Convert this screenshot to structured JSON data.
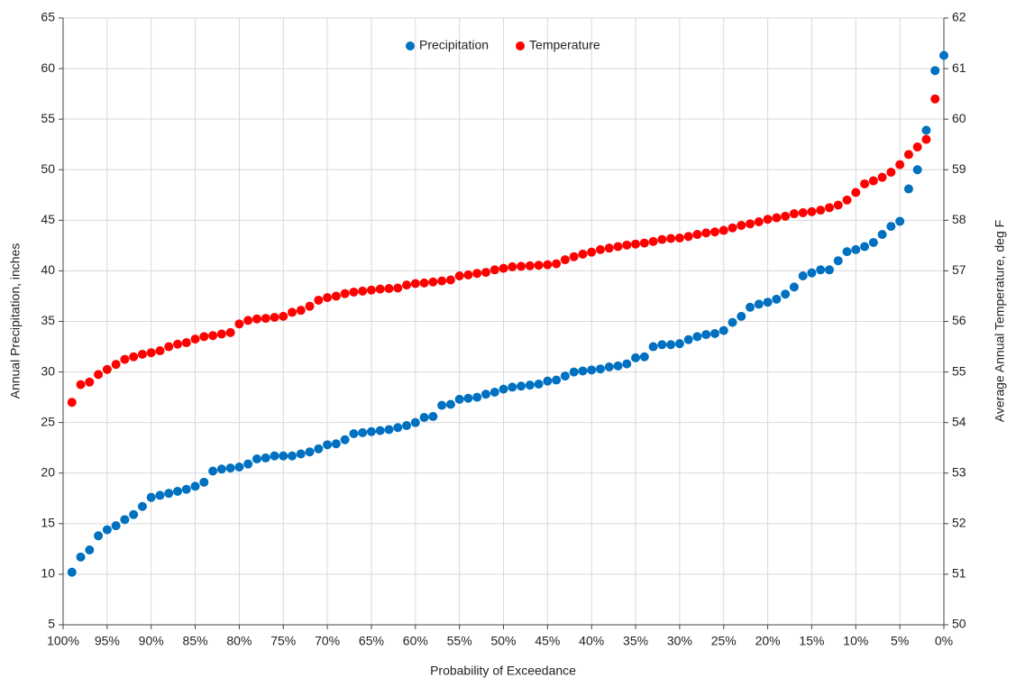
{
  "chart_data": {
    "type": "scatter",
    "x_label": "Probability of Exceedance",
    "y_label": "Annual Precipitation, inches",
    "y2_label": "Average Annual Temperature, deg F",
    "xlim": [
      100,
      0
    ],
    "xticks": [
      {
        "value": 100,
        "label": "100%"
      },
      {
        "value": 95,
        "label": "95%"
      },
      {
        "value": 90,
        "label": "90%"
      },
      {
        "value": 85,
        "label": "85%"
      },
      {
        "value": 80,
        "label": "80%"
      },
      {
        "value": 75,
        "label": "75%"
      },
      {
        "value": 70,
        "label": "70%"
      },
      {
        "value": 65,
        "label": "65%"
      },
      {
        "value": 60,
        "label": "60%"
      },
      {
        "value": 55,
        "label": "55%"
      },
      {
        "value": 50,
        "label": "50%"
      },
      {
        "value": 45,
        "label": "45%"
      },
      {
        "value": 40,
        "label": "40%"
      },
      {
        "value": 35,
        "label": "35%"
      },
      {
        "value": 30,
        "label": "30%"
      },
      {
        "value": 25,
        "label": "25%"
      },
      {
        "value": 20,
        "label": "20%"
      },
      {
        "value": 15,
        "label": "15%"
      },
      {
        "value": 10,
        "label": "10%"
      },
      {
        "value": 5,
        "label": "5%"
      },
      {
        "value": 0,
        "label": "0%"
      }
    ],
    "ylim": [
      5,
      65
    ],
    "yticks": [
      5,
      10,
      15,
      20,
      25,
      30,
      35,
      40,
      45,
      50,
      55,
      60,
      65
    ],
    "y2lim": [
      50,
      62
    ],
    "y2ticks": [
      50,
      51,
      52,
      53,
      54,
      55,
      56,
      57,
      58,
      59,
      60,
      61,
      62
    ],
    "grid": true,
    "legend": "top",
    "x": [
      99,
      98,
      97,
      96,
      95,
      94,
      93,
      92,
      91,
      90,
      89,
      88,
      87,
      86,
      85,
      84,
      83,
      82,
      81,
      80,
      79,
      78,
      77,
      76,
      75,
      74,
      73,
      72,
      71,
      70,
      69,
      68,
      67,
      66,
      65,
      64,
      63,
      62,
      61,
      60,
      59,
      58,
      57,
      56,
      55,
      54,
      53,
      52,
      51,
      50,
      49,
      48,
      47,
      46,
      45,
      44,
      43,
      42,
      41,
      40,
      39,
      38,
      37,
      36,
      35,
      34,
      33,
      32,
      31,
      30,
      29,
      28,
      27,
      26,
      25,
      24,
      23,
      22,
      21,
      20,
      19,
      18,
      17,
      16,
      15,
      14,
      13,
      12,
      11,
      10,
      9,
      8,
      7,
      6,
      5,
      4,
      3,
      2,
      1,
      0
    ],
    "series": [
      {
        "name": "Precipitation",
        "color": "#0070c0",
        "values": [
          10.2,
          11.7,
          12.4,
          13.8,
          14.4,
          14.8,
          15.4,
          15.9,
          16.7,
          17.6,
          17.8,
          18.0,
          18.2,
          18.4,
          18.7,
          19.1,
          20.2,
          20.4,
          20.5,
          20.6,
          20.9,
          21.4,
          21.5,
          21.7,
          21.7,
          21.7,
          21.9,
          22.1,
          22.4,
          22.8,
          22.9,
          23.3,
          23.9,
          24.0,
          24.1,
          24.2,
          24.3,
          24.5,
          24.7,
          25.0,
          25.5,
          25.6,
          26.7,
          26.8,
          27.3,
          27.4,
          27.5,
          27.8,
          28.0,
          28.3,
          28.5,
          28.6,
          28.7,
          28.8,
          29.1,
          29.2,
          29.6,
          30.0,
          30.1,
          30.2,
          30.3,
          30.5,
          30.6,
          30.8,
          31.4,
          31.5,
          32.5,
          32.7,
          32.7,
          32.8,
          33.2,
          33.5,
          33.7,
          33.8,
          34.1,
          34.9,
          35.5,
          36.4,
          36.7,
          36.9,
          37.2,
          37.7,
          38.4,
          39.5,
          39.8,
          40.1,
          40.1,
          41.0,
          41.9,
          42.1,
          42.4,
          42.8,
          43.6,
          44.4,
          44.9,
          48.1,
          50.0,
          53.9,
          59.8,
          61.3
        ]
      },
      {
        "name": "Temperature",
        "color": "#ff0000",
        "axis": "y2",
        "values": [
          54.4,
          54.75,
          54.8,
          54.95,
          55.05,
          55.15,
          55.25,
          55.3,
          55.35,
          55.38,
          55.42,
          55.5,
          55.55,
          55.58,
          55.65,
          55.7,
          55.72,
          55.75,
          55.78,
          55.95,
          56.02,
          56.05,
          56.06,
          56.08,
          56.1,
          56.18,
          56.22,
          56.3,
          56.42,
          56.47,
          56.5,
          56.55,
          56.58,
          56.6,
          56.62,
          56.64,
          56.65,
          56.66,
          56.72,
          56.75,
          56.76,
          56.78,
          56.8,
          56.82,
          56.9,
          56.92,
          56.95,
          56.97,
          57.02,
          57.05,
          57.08,
          57.09,
          57.1,
          57.11,
          57.12,
          57.14,
          57.22,
          57.28,
          57.33,
          57.37,
          57.42,
          57.45,
          57.48,
          57.51,
          57.53,
          57.55,
          57.58,
          57.62,
          57.64,
          57.65,
          57.68,
          57.72,
          57.75,
          57.77,
          57.8,
          57.85,
          57.9,
          57.93,
          57.97,
          58.02,
          58.05,
          58.08,
          58.13,
          58.15,
          58.17,
          58.2,
          58.25,
          58.3,
          58.4,
          58.55,
          58.72,
          58.78,
          58.85,
          58.95,
          59.1,
          59.3,
          59.45,
          59.6,
          60.4,
          null
        ]
      }
    ]
  }
}
